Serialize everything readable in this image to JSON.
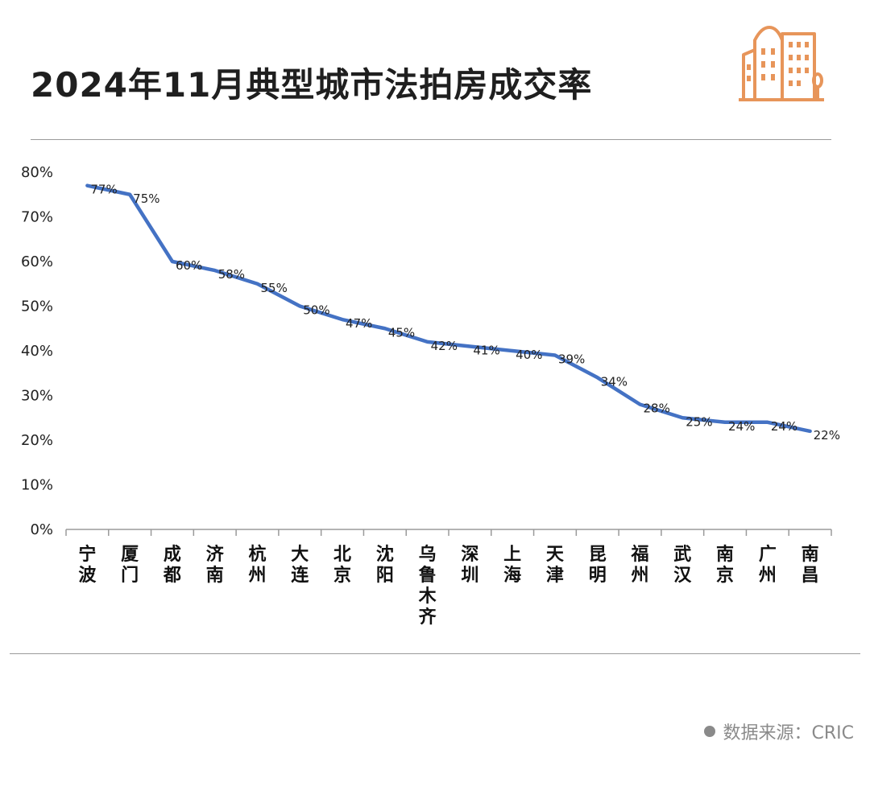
{
  "header": {
    "title": "2024年11月典型城市法拍房成交率",
    "logo_icon": "city-buildings-icon"
  },
  "footer": {
    "source": "数据来源：CRIC"
  },
  "colors": {
    "line": "#4472c4",
    "logo": "#e7955a",
    "axis": "#9a9a9a"
  },
  "chart_data": {
    "type": "line",
    "title": "",
    "xlabel": "",
    "ylabel": "",
    "ylim": [
      0,
      80
    ],
    "yticks": [
      "0%",
      "10%",
      "20%",
      "30%",
      "40%",
      "50%",
      "60%",
      "70%",
      "80%"
    ],
    "grid": false,
    "categories": [
      "宁波",
      "厦门",
      "成都",
      "济南",
      "杭州",
      "大连",
      "北京",
      "沈阳",
      "乌鲁木齐",
      "深圳",
      "上海",
      "天津",
      "昆明",
      "福州",
      "武汉",
      "南京",
      "广州",
      "南昌"
    ],
    "values": [
      77,
      75,
      60,
      58,
      55,
      50,
      47,
      45,
      42,
      41,
      40,
      39,
      34,
      28,
      25,
      24,
      24,
      22
    ],
    "data_labels": [
      "77%",
      "75%",
      "60%",
      "58%",
      "55%",
      "50%",
      "47%",
      "45%",
      "42%",
      "41%",
      "40%",
      "39%",
      "34%",
      "28%",
      "25%",
      "24%",
      "24%",
      "22%"
    ]
  }
}
